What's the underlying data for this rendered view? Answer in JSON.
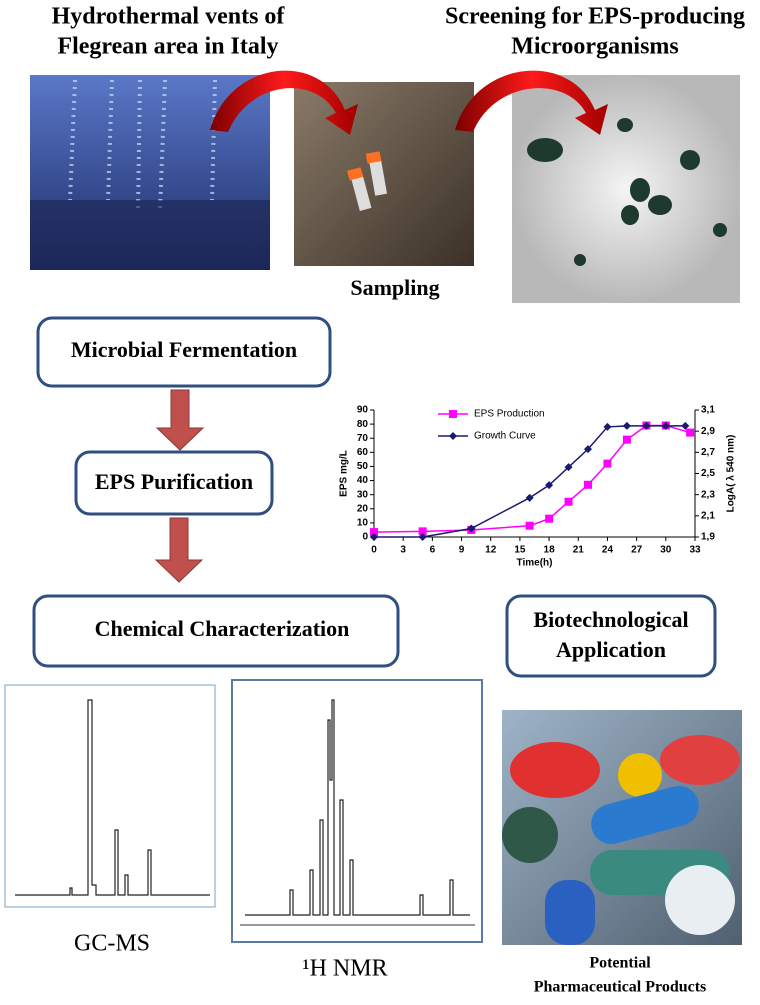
{
  "header": {
    "left": [
      "Hydrothermal vents of",
      "Flegrean area  in Italy"
    ],
    "right": [
      "Screening for EPS-producing",
      "Microorganisms"
    ]
  },
  "photos": {
    "sampling": "Sampling",
    "pills": [
      "Potential",
      "Pharmaceutical Products"
    ]
  },
  "steps": [
    "Microbial Fermentation",
    "EPS Purification",
    "Chemical Characterization"
  ],
  "application": [
    "Biotechnological",
    "Application"
  ],
  "panels": [
    "GC-MS",
    "¹H NMR"
  ],
  "chart": {
    "type": "line",
    "xlabel": "Time(h)",
    "ylabel": "EPS mg/L",
    "y2label": "LogA( λ 540 nm)",
    "xlim": [
      0,
      33
    ],
    "xticks": [
      0,
      3,
      6,
      9,
      12,
      15,
      18,
      21,
      24,
      27,
      30,
      33
    ],
    "ylim": [
      0,
      90
    ],
    "yticks": [
      0,
      10,
      20,
      30,
      40,
      50,
      60,
      70,
      80,
      90
    ],
    "y2lim": [
      1.9,
      3.1
    ],
    "y2ticks": [
      {
        "value": 1.9,
        "label": "1,9"
      },
      {
        "value": 2.1,
        "label": "2,1"
      },
      {
        "value": 2.3,
        "label": "2,3"
      },
      {
        "value": 2.5,
        "label": "2,5"
      },
      {
        "value": 2.7,
        "label": "2,7"
      },
      {
        "value": 2.9,
        "label": "2,9"
      },
      {
        "value": 3.1,
        "label": "3,1"
      }
    ],
    "series": [
      {
        "name": "EPS Production",
        "color": "#ff00ff",
        "marker": "square",
        "x": [
          0,
          5,
          10,
          16,
          18,
          20,
          22,
          24,
          26,
          28,
          30,
          32.5
        ],
        "values": [
          3.5,
          4,
          5,
          8,
          13,
          25,
          37,
          52,
          69,
          79,
          79,
          74
        ]
      },
      {
        "name": "Growth  Curve",
        "color": "#1a1a6e",
        "marker": "diamond",
        "axis": "y2",
        "x": [
          0,
          5,
          10,
          16,
          18,
          20,
          22,
          24,
          26,
          28,
          30,
          32
        ],
        "values": [
          1.9,
          1.9,
          1.98,
          2.27,
          2.39,
          2.56,
          2.73,
          2.94,
          2.95,
          2.95,
          2.95,
          2.95
        ]
      }
    ]
  }
}
